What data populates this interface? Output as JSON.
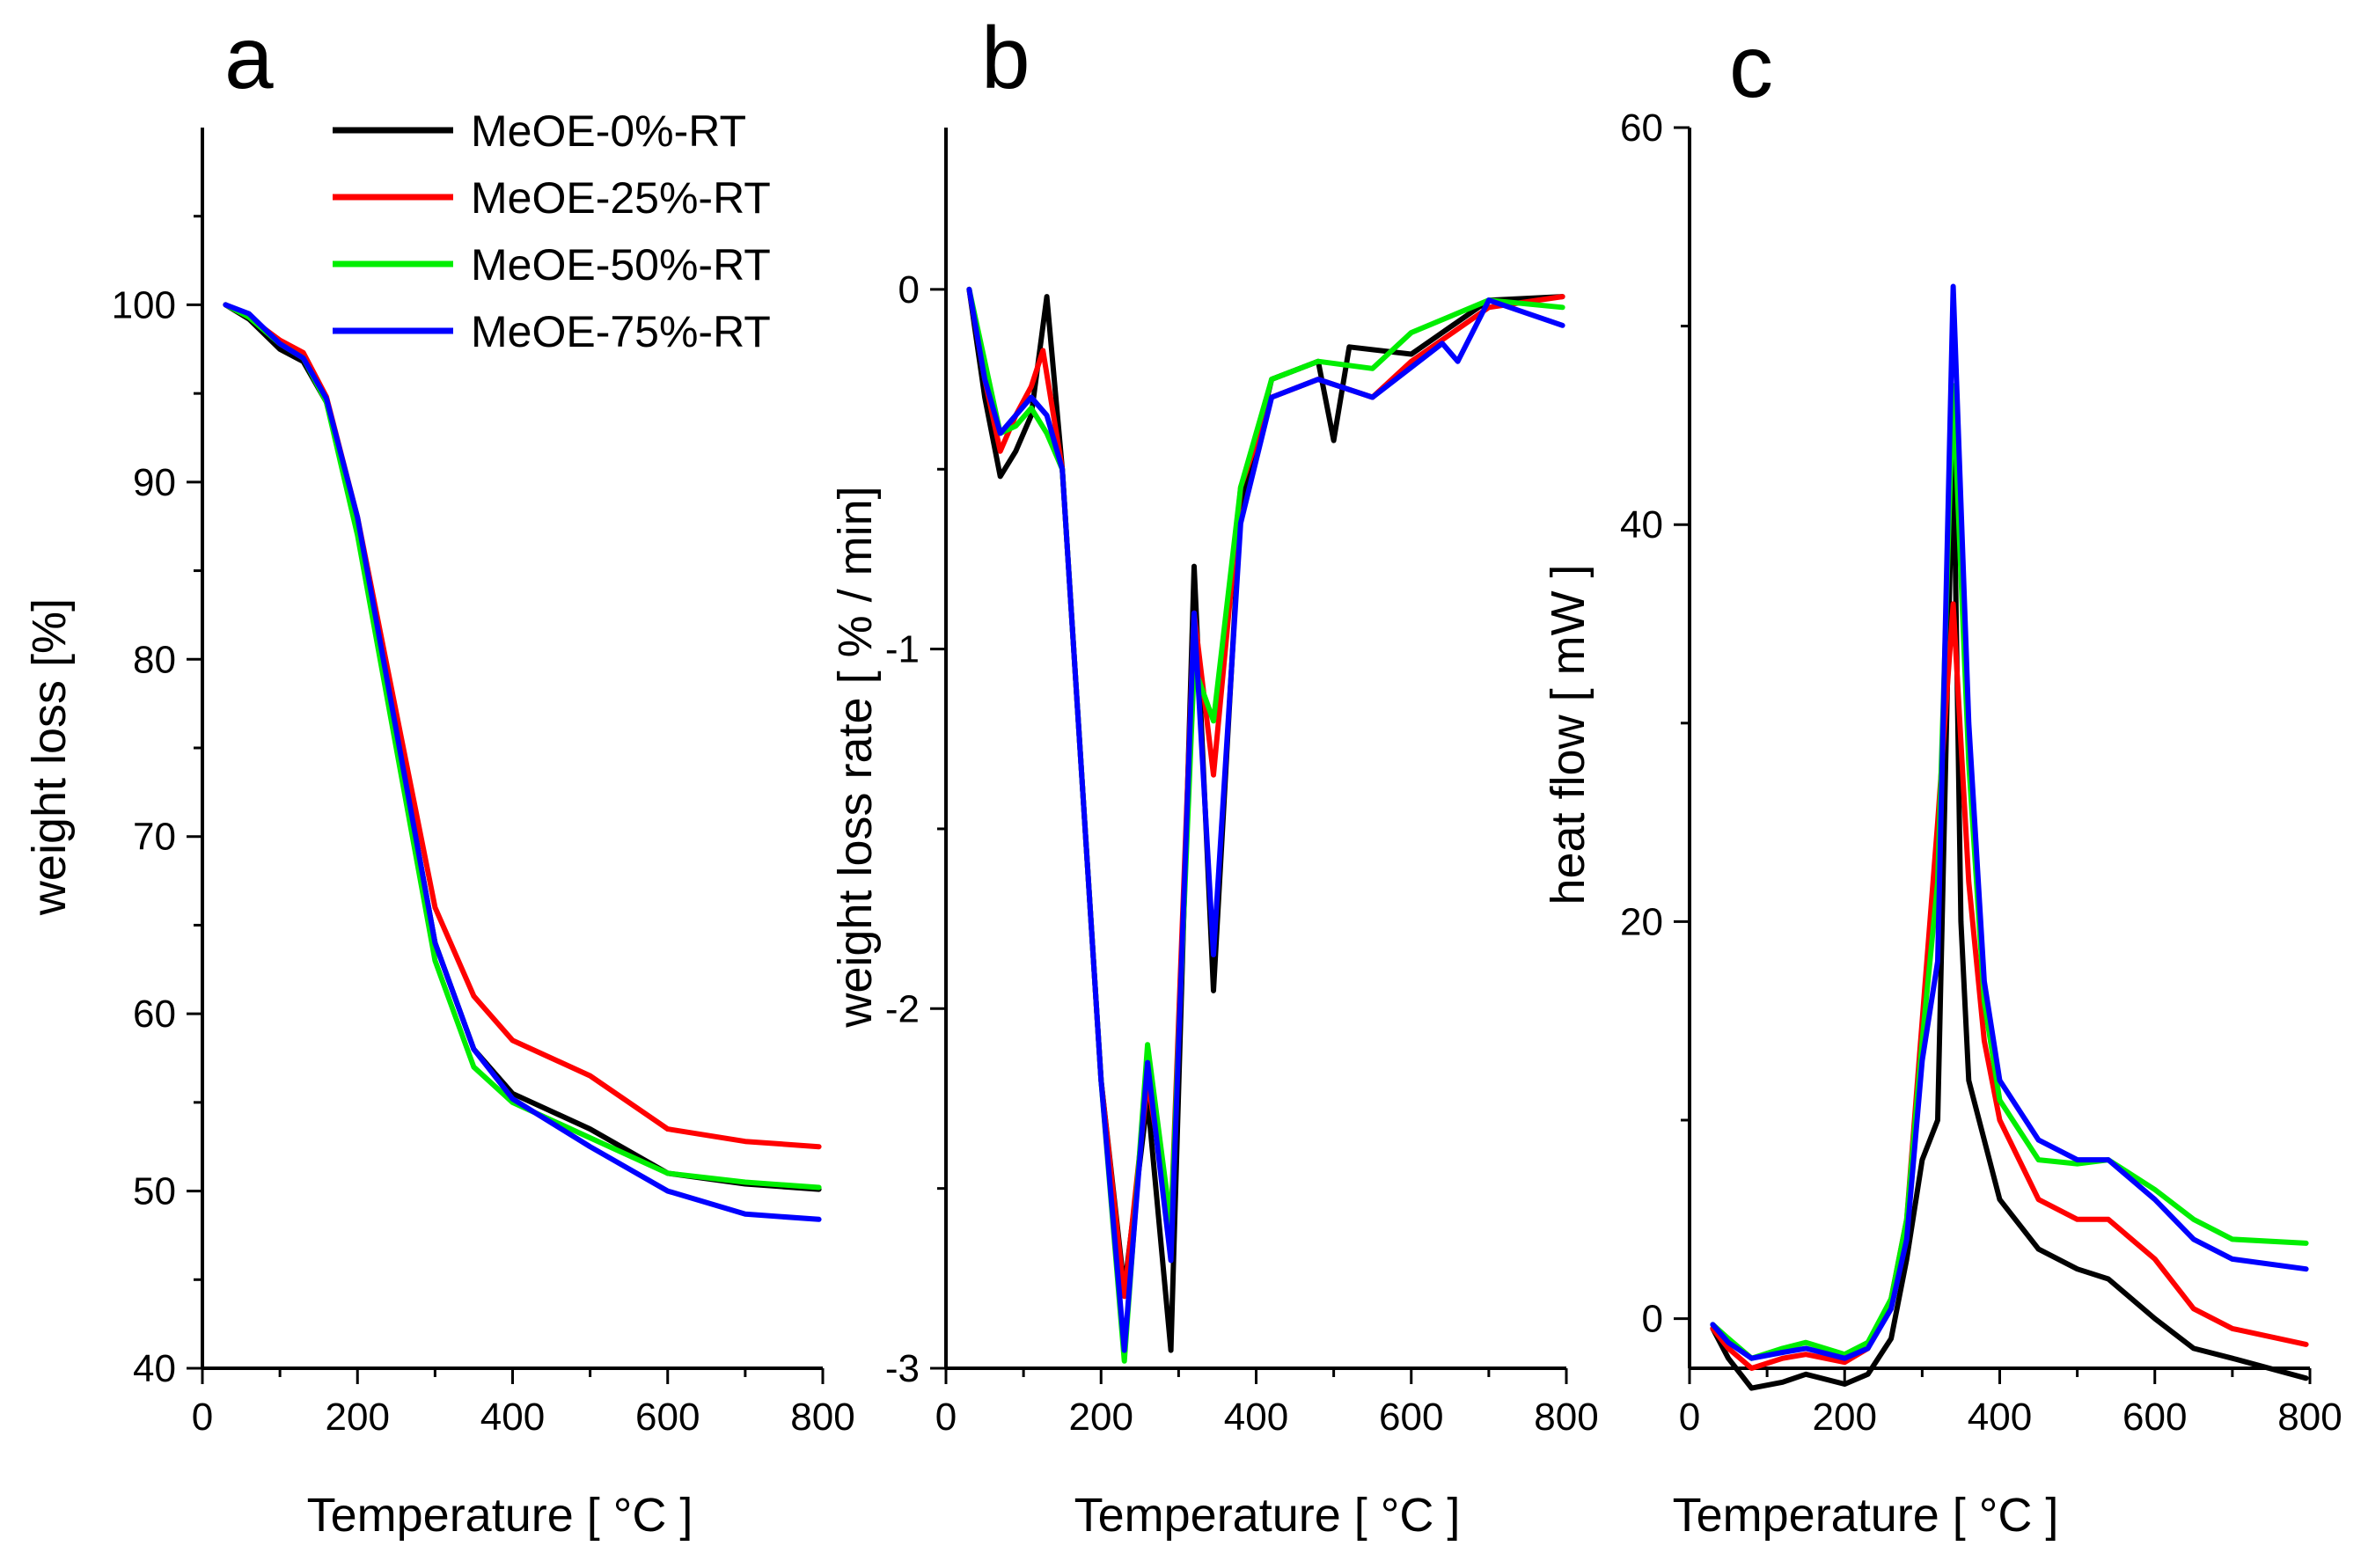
{
  "colors": {
    "black": "#000000",
    "red": "#ff0000",
    "green": "#00ee00",
    "blue": "#0000ff"
  },
  "legend": [
    {
      "label": "MeOE-0%-RT",
      "color": "#000000"
    },
    {
      "label": "MeOE-25%-RT",
      "color": "#ff0000"
    },
    {
      "label": "MeOE-50%-RT",
      "color": "#00ee00"
    },
    {
      "label": "MeOE-75%-RT",
      "color": "#0000ff"
    }
  ],
  "chart_data": [
    {
      "type": "line",
      "panel": "a",
      "xlabel": "Temperature [ °C ]",
      "ylabel": "weight loss  [%]",
      "xlim": [
        0,
        800
      ],
      "ylim": [
        40,
        110
      ],
      "xticks": [
        0,
        200,
        400,
        600,
        800
      ],
      "yticks": [
        40,
        50,
        60,
        70,
        80,
        90,
        100
      ],
      "legend_position": "top-right",
      "series": [
        {
          "name": "MeOE-0%-RT",
          "color": "#000000",
          "x": [
            30,
            60,
            100,
            130,
            160,
            200,
            250,
            300,
            350,
            400,
            500,
            600,
            700,
            795
          ],
          "y": [
            100,
            99.2,
            97.5,
            96.8,
            94.5,
            87.5,
            76,
            64,
            58,
            55.5,
            53.5,
            51,
            50.4,
            50.1
          ]
        },
        {
          "name": "MeOE-25%-RT",
          "color": "#ff0000",
          "x": [
            30,
            60,
            100,
            130,
            160,
            200,
            250,
            300,
            350,
            400,
            500,
            600,
            700,
            795
          ],
          "y": [
            100,
            99.3,
            98,
            97.3,
            94.8,
            88,
            77,
            66,
            61,
            58.5,
            56.5,
            53.5,
            52.8,
            52.5
          ]
        },
        {
          "name": "MeOE-50%-RT",
          "color": "#00ee00",
          "x": [
            30,
            60,
            100,
            130,
            160,
            200,
            250,
            300,
            350,
            400,
            500,
            600,
            700,
            795
          ],
          "y": [
            100,
            99.3,
            97.8,
            97,
            94.5,
            87,
            75,
            63,
            57,
            55,
            53,
            51,
            50.5,
            50.2
          ]
        },
        {
          "name": "MeOE-75%-RT",
          "color": "#0000ff",
          "x": [
            30,
            60,
            100,
            130,
            160,
            200,
            250,
            300,
            350,
            400,
            500,
            600,
            700,
            795
          ],
          "y": [
            100,
            99.5,
            97.8,
            97,
            94.7,
            88,
            76,
            64,
            58,
            55.2,
            52.5,
            50,
            48.7,
            48.4
          ]
        }
      ]
    },
    {
      "type": "line",
      "panel": "b",
      "xlabel": "Temperature [ °C ]",
      "ylabel": "weight loss rate [ % / min]",
      "xlim": [
        0,
        800
      ],
      "ylim": [
        -3,
        0.45
      ],
      "xticks": [
        0,
        200,
        400,
        600,
        800
      ],
      "yticks": [
        -3,
        -2,
        -1,
        0
      ],
      "series": [
        {
          "name": "MeOE-0%-RT",
          "color": "#000000",
          "x": [
            30,
            50,
            70,
            90,
            110,
            130,
            150,
            200,
            230,
            260,
            290,
            320,
            345,
            380,
            420,
            480,
            500,
            520,
            600,
            700,
            795
          ],
          "y": [
            0,
            -0.3,
            -0.52,
            -0.45,
            -0.35,
            -0.02,
            -0.5,
            -2.2,
            -2.78,
            -2.25,
            -2.95,
            -0.77,
            -1.95,
            -0.6,
            -0.25,
            -0.2,
            -0.42,
            -0.16,
            -0.18,
            -0.03,
            -0.02
          ]
        },
        {
          "name": "MeOE-25%-RT",
          "color": "#ff0000",
          "x": [
            30,
            50,
            70,
            90,
            110,
            125,
            150,
            200,
            230,
            260,
            290,
            320,
            345,
            380,
            420,
            480,
            550,
            600,
            700,
            795
          ],
          "y": [
            0,
            -0.25,
            -0.45,
            -0.35,
            -0.27,
            -0.17,
            -0.5,
            -2.2,
            -2.8,
            -2.2,
            -2.6,
            -0.9,
            -1.35,
            -0.55,
            -0.3,
            -0.25,
            -0.3,
            -0.2,
            -0.05,
            -0.02
          ]
        },
        {
          "name": "MeOE-50%-RT",
          "color": "#00ee00",
          "x": [
            30,
            50,
            70,
            90,
            110,
            130,
            150,
            200,
            230,
            260,
            290,
            320,
            345,
            380,
            420,
            480,
            550,
            600,
            700,
            795
          ],
          "y": [
            0,
            -0.2,
            -0.4,
            -0.38,
            -0.33,
            -0.4,
            -0.5,
            -2.2,
            -2.98,
            -2.1,
            -2.6,
            -1.05,
            -1.2,
            -0.55,
            -0.25,
            -0.2,
            -0.22,
            -0.12,
            -0.03,
            -0.05
          ]
        },
        {
          "name": "MeOE-75%-RT",
          "color": "#0000ff",
          "x": [
            30,
            50,
            70,
            90,
            110,
            130,
            150,
            200,
            230,
            260,
            290,
            320,
            345,
            380,
            420,
            480,
            550,
            640,
            660,
            700,
            795
          ],
          "y": [
            0,
            -0.25,
            -0.4,
            -0.35,
            -0.3,
            -0.35,
            -0.5,
            -2.2,
            -2.95,
            -2.15,
            -2.7,
            -0.9,
            -1.85,
            -0.65,
            -0.3,
            -0.25,
            -0.3,
            -0.15,
            -0.2,
            -0.03,
            -0.1
          ]
        }
      ]
    },
    {
      "type": "line",
      "panel": "c",
      "xlabel": "Temperature [ °C ]",
      "ylabel": "heat  flow  [ mW ]",
      "xlim": [
        0,
        800
      ],
      "ylim": [
        -2.5,
        60
      ],
      "xticks": [
        0,
        200,
        400,
        600,
        800
      ],
      "yticks": [
        0,
        20,
        40,
        60
      ],
      "series": [
        {
          "name": "MeOE-0%-RT",
          "color": "#000000",
          "x": [
            30,
            50,
            80,
            120,
            150,
            200,
            230,
            260,
            280,
            300,
            320,
            340,
            350,
            360,
            400,
            450,
            500,
            540,
            600,
            650,
            700,
            795
          ],
          "y": [
            -0.5,
            -2,
            -3.5,
            -3.2,
            -2.8,
            -3.3,
            -2.8,
            -1,
            3,
            8,
            10,
            45,
            20,
            12,
            6,
            3.5,
            2.5,
            2,
            0,
            -1.5,
            -2,
            -3
          ]
        },
        {
          "name": "MeOE-25%-RT",
          "color": "#ff0000",
          "x": [
            30,
            50,
            80,
            120,
            150,
            200,
            230,
            260,
            280,
            300,
            320,
            340,
            360,
            380,
            400,
            450,
            500,
            540,
            600,
            650,
            700,
            795
          ],
          "y": [
            -0.5,
            -1.5,
            -2.5,
            -2,
            -1.8,
            -2.2,
            -1.5,
            1,
            5,
            15,
            25,
            36,
            22,
            14,
            10,
            6,
            5,
            5,
            3,
            0.5,
            -0.5,
            -1.3
          ]
        },
        {
          "name": "MeOE-50%-RT",
          "color": "#00ee00",
          "x": [
            30,
            50,
            80,
            120,
            150,
            200,
            230,
            260,
            280,
            300,
            320,
            340,
            360,
            380,
            400,
            450,
            500,
            540,
            600,
            650,
            700,
            795
          ],
          "y": [
            -0.3,
            -1,
            -2,
            -1.5,
            -1.2,
            -1.8,
            -1.2,
            1,
            5,
            14,
            22,
            47,
            28,
            16,
            11,
            8,
            7.8,
            8,
            6.5,
            5,
            4,
            3.8
          ]
        },
        {
          "name": "MeOE-75%-RT",
          "color": "#0000ff",
          "x": [
            30,
            50,
            80,
            120,
            150,
            200,
            230,
            260,
            280,
            300,
            320,
            340,
            360,
            380,
            400,
            450,
            500,
            540,
            600,
            650,
            700,
            795
          ],
          "y": [
            -0.3,
            -1.2,
            -2,
            -1.7,
            -1.5,
            -2,
            -1.5,
            0.5,
            4,
            13,
            18,
            52,
            30,
            17,
            12,
            9,
            8,
            8,
            6,
            4,
            3,
            2.5
          ]
        }
      ]
    }
  ]
}
